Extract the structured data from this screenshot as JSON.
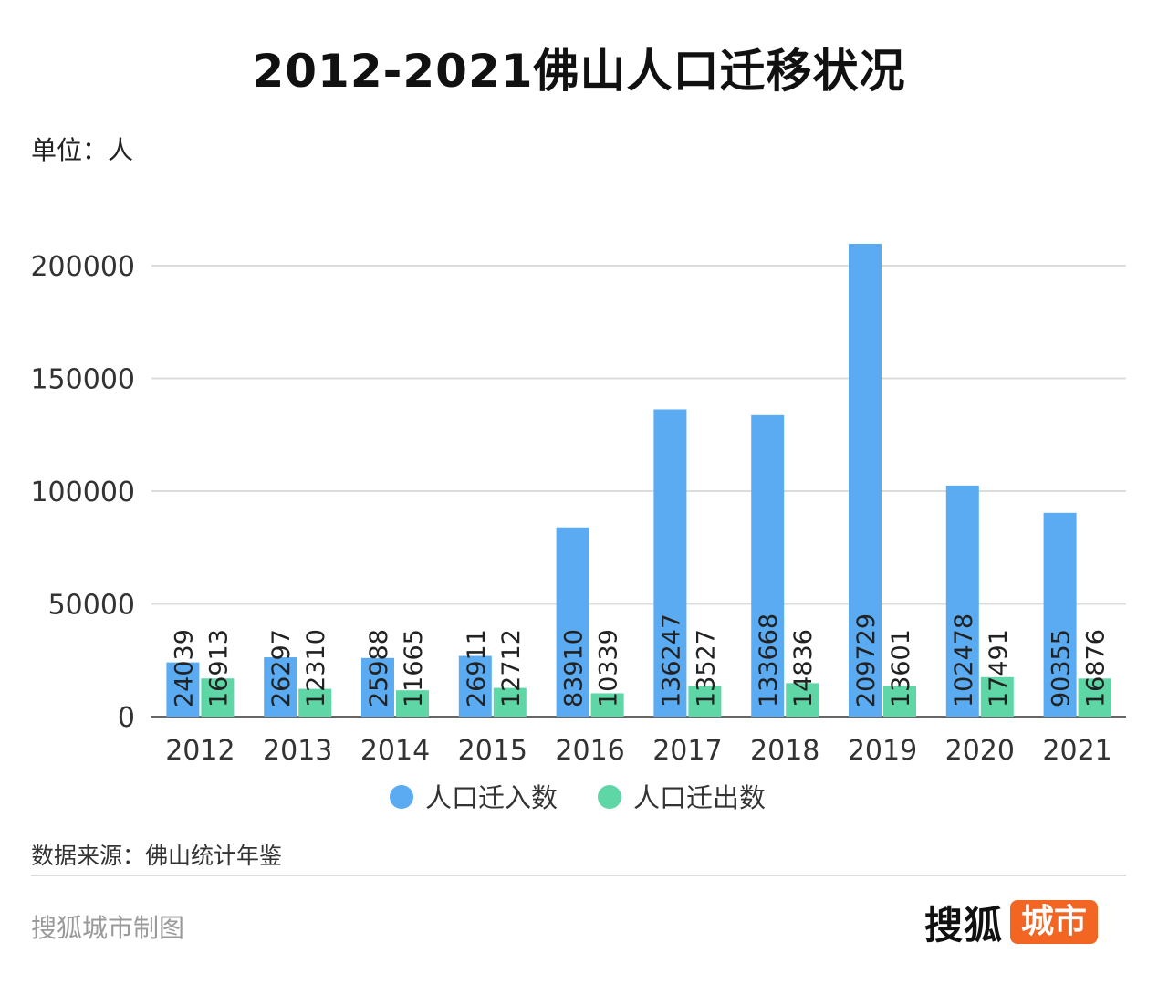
{
  "header": {
    "title": "2012-2021佛山人口迁移状况",
    "unit": "单位：人"
  },
  "chart_data": {
    "type": "bar",
    "categories": [
      "2012",
      "2013",
      "2014",
      "2015",
      "2016",
      "2017",
      "2018",
      "2019",
      "2020",
      "2021"
    ],
    "series": [
      {
        "name": "人口迁入数",
        "color": "#5aabf2",
        "values": [
          24039,
          26297,
          25988,
          26911,
          83910,
          136247,
          133668,
          209729,
          102478,
          90355
        ]
      },
      {
        "name": "人口迁出数",
        "color": "#5ed6a6",
        "values": [
          16913,
          12310,
          11665,
          12712,
          10339,
          13527,
          14836,
          13601,
          17491,
          16876
        ]
      }
    ],
    "ylim": [
      0,
      210000
    ],
    "yticks": [
      0,
      50000,
      100000,
      150000,
      200000
    ],
    "grid": true,
    "legend_position": "bottom-center",
    "data_labels": "inside-bar-vertical"
  },
  "footer": {
    "source": "数据来源：佛山统计年鉴",
    "credit": "搜狐城市制图",
    "logo_main": "搜狐",
    "logo_badge": "城市"
  }
}
